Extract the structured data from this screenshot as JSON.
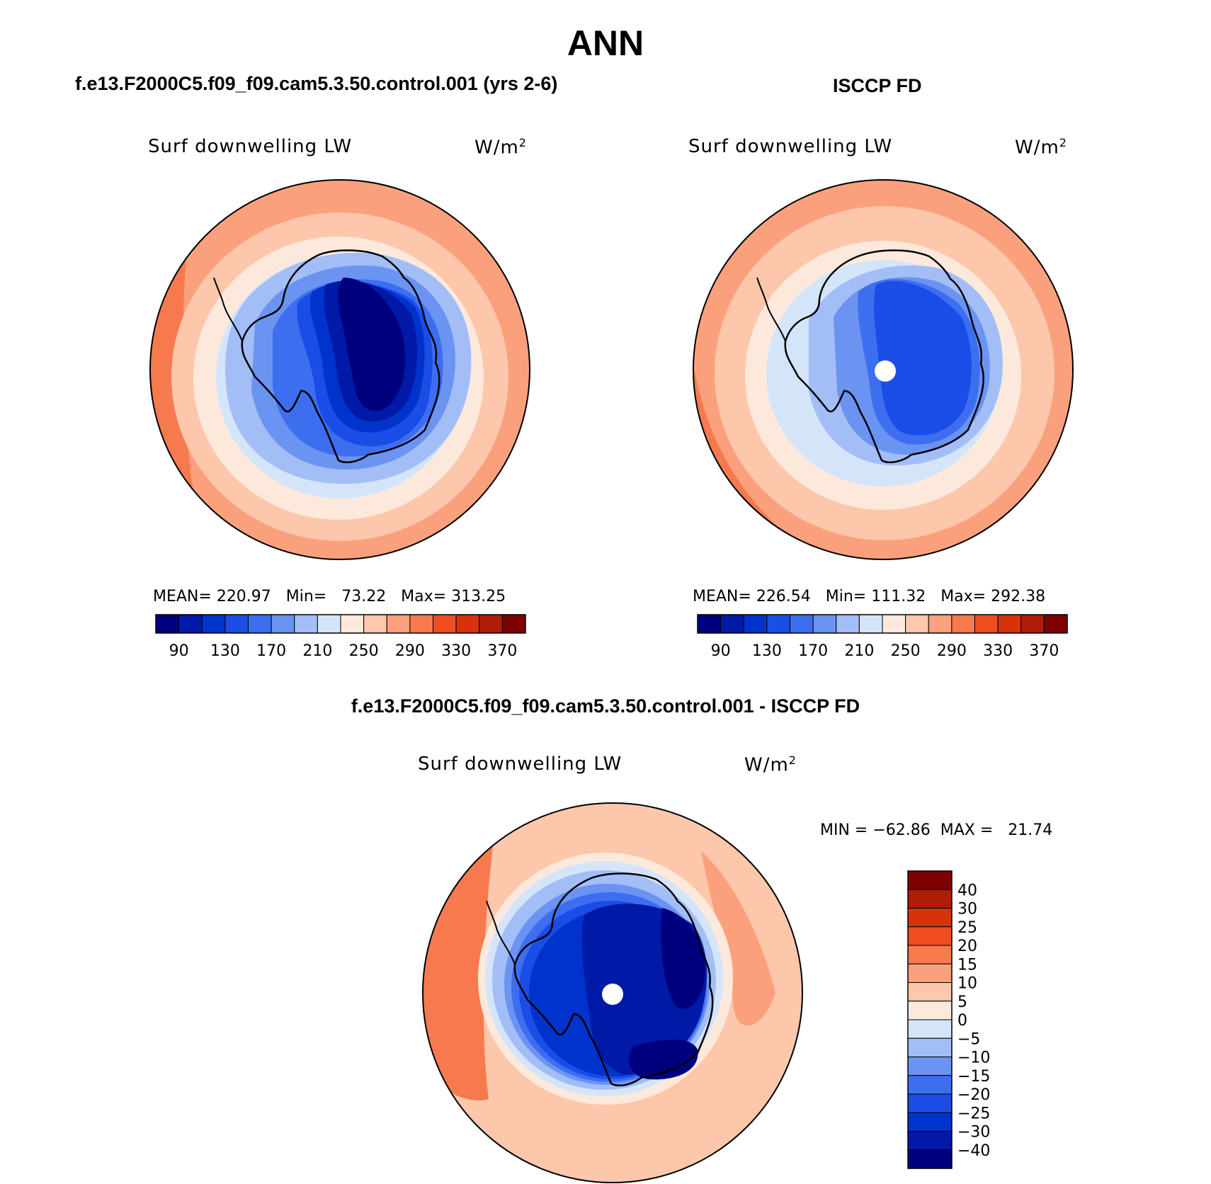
{
  "figure": {
    "season": "ANN",
    "case_title": "f.e13.F2000C5.f09_f09.cam5.3.50.control.001 (yrs 2-6)",
    "obs_title": "ISCCP FD",
    "diff_title": "f.e13.F2000C5.f09_f09.cam5.3.50.control.001 - ISCCP FD"
  },
  "panels": {
    "model": {
      "variable": "Surf downwelling LW",
      "units_base": "W/m",
      "units_exp": "2",
      "stats": "MEAN= 220.97   Min=   73.22   Max= 313.25"
    },
    "obs": {
      "variable": "Surf downwelling LW",
      "units_base": "W/m",
      "units_exp": "2",
      "stats": "MEAN= 226.54   Min= 111.32   Max= 292.38"
    },
    "diff": {
      "variable": "Surf downwelling LW",
      "units_base": "W/m",
      "units_exp": "2",
      "stats": "MIN = −62.86  MAX =   21.74"
    }
  },
  "colorbar_main": {
    "colors": [
      "#00007f",
      "#0019a6",
      "#0033cc",
      "#1a4de6",
      "#3d6ef0",
      "#6b93f2",
      "#a3bdf7",
      "#d4e5fa",
      "#fde9dc",
      "#fcc7ab",
      "#fba07d",
      "#f77a4e",
      "#f04d23",
      "#d8320d",
      "#b01c05",
      "#7f0000"
    ],
    "labels": [
      "90",
      "130",
      "170",
      "210",
      "250",
      "290",
      "330",
      "370"
    ]
  },
  "colorbar_diff": {
    "colors": [
      "#7f0000",
      "#b01c05",
      "#d8320d",
      "#f04d23",
      "#f77a4e",
      "#fba07d",
      "#fcc7ab",
      "#fde9dc",
      "#d4e5fa",
      "#a3bdf7",
      "#6b93f2",
      "#3d6ef0",
      "#1a4de6",
      "#0033cc",
      "#0019a6",
      "#00007f"
    ],
    "labels": [
      "40",
      "30",
      "25",
      "20",
      "15",
      "10",
      "5",
      "0",
      "−5",
      "−10",
      "−15",
      "−20",
      "−25",
      "−30",
      "−40"
    ]
  }
}
